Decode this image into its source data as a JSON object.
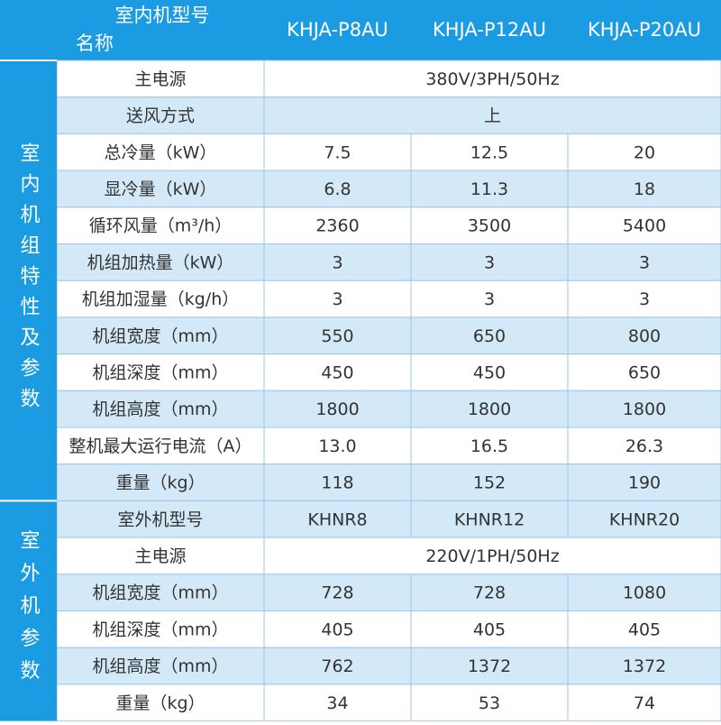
{
  "header": {
    "model_label": "室内机型号",
    "name_label": "名称",
    "models": [
      "KHJA-P8AU",
      "KHJA-P12AU",
      "KHJA-P20AU"
    ]
  },
  "sections": [
    {
      "label": "室内机组特性及参数",
      "rows": [
        {
          "name": "主电源",
          "values": [
            "380V/3PH/50Hz"
          ]
        },
        {
          "name": "送风方式",
          "values": [
            "上"
          ]
        },
        {
          "name": "总冷量（kW）",
          "values": [
            "7.5",
            "12.5",
            "20"
          ]
        },
        {
          "name": "显冷量（kW）",
          "values": [
            "6.8",
            "11.3",
            "18"
          ]
        },
        {
          "name": "循环风量（m³/h）",
          "values": [
            "2360",
            "3500",
            "5400"
          ]
        },
        {
          "name": "机组加热量（kW）",
          "values": [
            "3",
            "3",
            "3"
          ]
        },
        {
          "name": "机组加湿量（kg/h）",
          "values": [
            "3",
            "3",
            "3"
          ]
        },
        {
          "name": "机组宽度（mm）",
          "values": [
            "550",
            "650",
            "800"
          ]
        },
        {
          "name": "机组深度（mm）",
          "values": [
            "450",
            "450",
            "650"
          ]
        },
        {
          "name": "机组高度（mm）",
          "values": [
            "1800",
            "1800",
            "1800"
          ]
        },
        {
          "name": "整机最大运行电流（A）",
          "values": [
            "13.0",
            "16.5",
            "26.3"
          ]
        },
        {
          "name": "重量（kg）",
          "values": [
            "118",
            "152",
            "190"
          ]
        }
      ]
    },
    {
      "label": "室外机参数",
      "rows": [
        {
          "name": "室外机型号",
          "values": [
            "KHNR8",
            "KHNR12",
            "KHNR20"
          ]
        },
        {
          "name": "主电源",
          "values": [
            "220V/1PH/50Hz"
          ]
        },
        {
          "name": "机组宽度（mm）",
          "values": [
            "728",
            "728",
            "1080"
          ]
        },
        {
          "name": "机组深度（mm）",
          "values": [
            "405",
            "405",
            "405"
          ]
        },
        {
          "name": "机组高度（mm）",
          "values": [
            "762",
            "1372",
            "1372"
          ]
        },
        {
          "name": "重量（kg）",
          "values": [
            "34",
            "53",
            "74"
          ]
        }
      ]
    }
  ]
}
